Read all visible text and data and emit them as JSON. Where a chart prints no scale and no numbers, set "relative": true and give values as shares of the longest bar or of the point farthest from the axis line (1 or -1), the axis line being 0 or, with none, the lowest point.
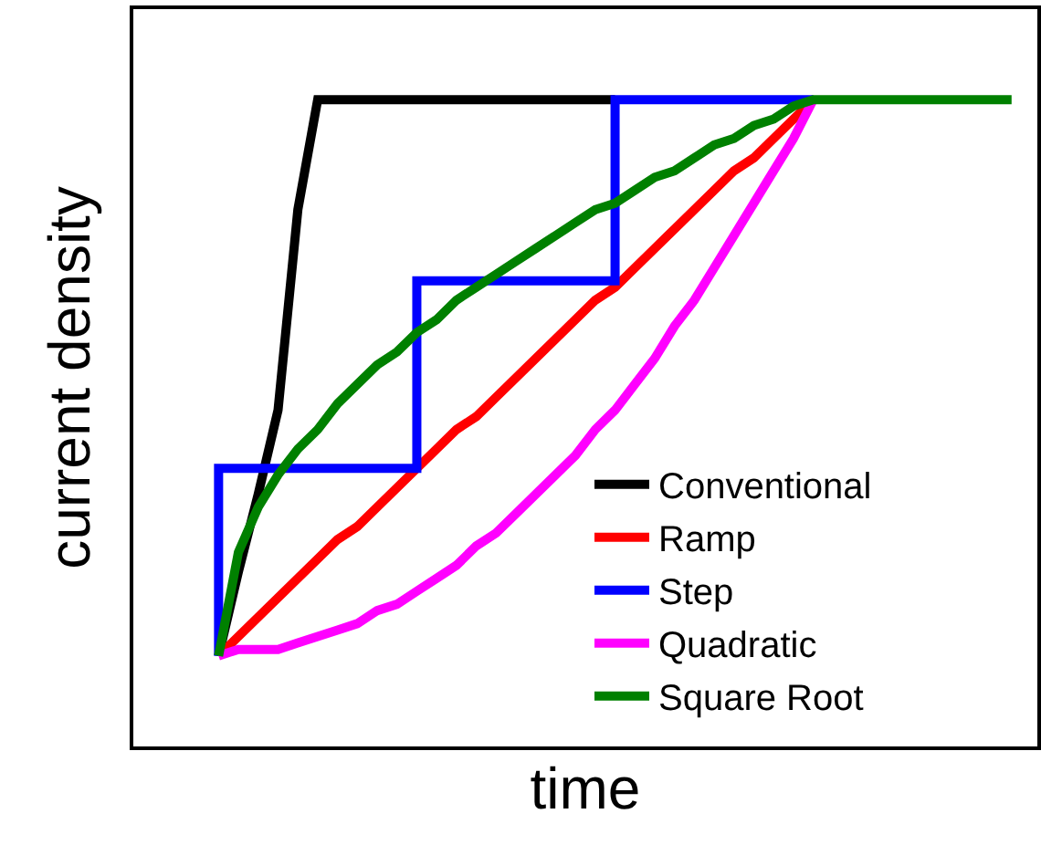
{
  "chart_data": {
    "type": "line",
    "xlabel": "time",
    "ylabel": "current density",
    "relative": true,
    "legend": "bottom right",
    "grid": false,
    "marker": "none",
    "line_style": "solid",
    "categories": [
      null,
      null,
      null,
      null,
      null,
      null,
      null,
      null,
      null,
      null,
      null,
      null,
      null,
      null,
      null,
      null,
      null,
      null,
      null,
      null,
      null,
      null,
      null,
      null,
      null,
      null,
      null,
      null,
      null,
      null,
      null,
      null,
      null,
      null,
      null,
      null,
      null,
      null,
      null,
      null,
      null
    ],
    "series": [
      {
        "name": "Conventional",
        "color": "#000000",
        "values": [
          0.14,
          0.27,
          0.39,
          0.52,
          0.83,
          1,
          1,
          1,
          1,
          1,
          1,
          1,
          1,
          1,
          1,
          1,
          1,
          1,
          1,
          1,
          1,
          null,
          null,
          null,
          null,
          null,
          null,
          null,
          null,
          null,
          null,
          null,
          null,
          null,
          null,
          null,
          null,
          null,
          null,
          null,
          null
        ]
      },
      {
        "name": "Ramp",
        "color": "#ff0000",
        "values": [
          0.14,
          0.17,
          0.2,
          0.23,
          0.26,
          0.29,
          0.32,
          0.34,
          0.37,
          0.4,
          0.43,
          0.46,
          0.49,
          0.51,
          0.54,
          0.57,
          0.6,
          0.63,
          0.66,
          0.69,
          0.71,
          0.74,
          0.77,
          0.8,
          0.83,
          0.86,
          0.89,
          0.91,
          0.94,
          0.97,
          1,
          null,
          null,
          null,
          null,
          null,
          null,
          null,
          null,
          null,
          null
        ]
      },
      {
        "name": "Step",
        "type": "step",
        "color": "#0000ff",
        "values": [
          0.14,
          0.43,
          0.43,
          0.43,
          0.43,
          0.43,
          0.43,
          0.43,
          0.43,
          0.43,
          0.43,
          0.72,
          0.72,
          0.72,
          0.72,
          0.72,
          0.72,
          0.72,
          0.72,
          0.72,
          0.72,
          1,
          1,
          1,
          1,
          1,
          1,
          1,
          1,
          1,
          1,
          null,
          null,
          null,
          null,
          null,
          null,
          null,
          null,
          null,
          null
        ]
      },
      {
        "name": "Quadratic",
        "color": "#ff00ff",
        "values": [
          0.14,
          0.15,
          0.15,
          0.15,
          0.16,
          0.17,
          0.18,
          0.19,
          0.21,
          0.22,
          0.24,
          0.26,
          0.28,
          0.31,
          0.33,
          0.36,
          0.39,
          0.42,
          0.45,
          0.49,
          0.52,
          0.56,
          0.6,
          0.65,
          0.69,
          0.74,
          0.79,
          0.84,
          0.89,
          0.94,
          1,
          null,
          null,
          null,
          null,
          null,
          null,
          null,
          null,
          null,
          null
        ]
      },
      {
        "name": "Square Root",
        "color": "#008000",
        "values": [
          0.14,
          0.3,
          0.37,
          0.42,
          0.46,
          0.49,
          0.53,
          0.56,
          0.59,
          0.61,
          0.64,
          0.66,
          0.69,
          0.71,
          0.73,
          0.75,
          0.77,
          0.79,
          0.81,
          0.83,
          0.84,
          0.86,
          0.88,
          0.89,
          0.91,
          0.93,
          0.94,
          0.96,
          0.97,
          0.99,
          1,
          1,
          1,
          1,
          1,
          1,
          1,
          1,
          1,
          1,
          1
        ]
      }
    ]
  }
}
